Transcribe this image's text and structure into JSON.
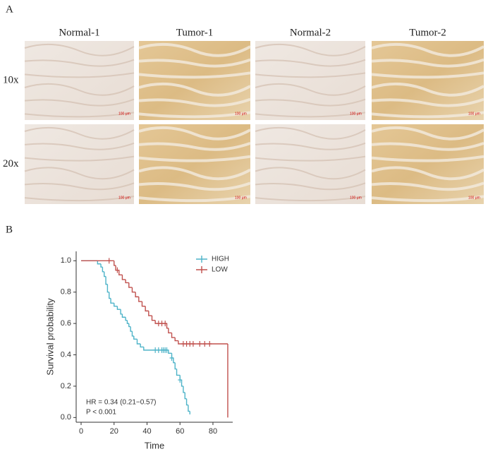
{
  "panel_a": {
    "label": "A",
    "columns": [
      "Normal-1",
      "Tumor-1",
      "Normal-2",
      "Tumor-2"
    ],
    "rows": [
      "10x",
      "20x"
    ],
    "scale_bar": "100 μm"
  },
  "panel_b": {
    "label": "B"
  },
  "chart_data": {
    "type": "km",
    "x_label": "Time",
    "y_label": "Survival probability",
    "annotations": [
      "HR = 0.34 (0.21−0.57)",
      "P < 0.001"
    ],
    "xlim": [
      -3,
      92
    ],
    "ylim": [
      -0.03,
      1.06
    ],
    "xticks": [
      0,
      20,
      40,
      60,
      80
    ],
    "yticks": [
      {
        "value": 0,
        "label": "0.0"
      },
      0.2,
      0.4,
      0.6,
      0.8,
      {
        "value": 1,
        "label": "1.0"
      }
    ],
    "legend": "top-right",
    "series": [
      {
        "name": "HIGH",
        "color": "#4db3c8",
        "x": [
          0,
          10,
          12,
          13,
          14,
          15,
          16,
          17,
          18,
          20,
          22,
          24,
          25,
          27,
          28,
          29,
          30,
          31,
          32,
          34,
          36,
          38,
          53,
          55,
          56,
          57,
          58,
          60,
          61,
          62,
          63,
          64,
          65,
          66
        ],
        "values": [
          1.0,
          0.98,
          0.96,
          0.93,
          0.9,
          0.85,
          0.8,
          0.76,
          0.73,
          0.71,
          0.69,
          0.66,
          0.64,
          0.62,
          0.6,
          0.58,
          0.55,
          0.52,
          0.5,
          0.47,
          0.45,
          0.43,
          0.41,
          0.38,
          0.35,
          0.31,
          0.27,
          0.24,
          0.2,
          0.16,
          0.12,
          0.08,
          0.04,
          0.02
        ],
        "censored_x": [
          45,
          47,
          49,
          50,
          51,
          52,
          55,
          60
        ],
        "censored_values": [
          0.43,
          0.43,
          0.43,
          0.43,
          0.43,
          0.43,
          0.38,
          0.24
        ]
      },
      {
        "name": "LOW",
        "color": "#c0504d",
        "x": [
          0,
          20,
          21,
          23,
          25,
          27,
          29,
          31,
          33,
          35,
          37,
          39,
          41,
          43,
          45,
          52,
          53,
          55,
          57,
          59,
          89
        ],
        "values": [
          1.0,
          0.97,
          0.94,
          0.91,
          0.88,
          0.86,
          0.83,
          0.8,
          0.77,
          0.74,
          0.71,
          0.68,
          0.65,
          0.62,
          0.6,
          0.57,
          0.54,
          0.51,
          0.49,
          0.47,
          0.0
        ],
        "censored_x": [
          17,
          22,
          47,
          49,
          51,
          62,
          64,
          66,
          68,
          72,
          75,
          78
        ],
        "censored_values": [
          1.0,
          0.94,
          0.6,
          0.6,
          0.6,
          0.47,
          0.47,
          0.47,
          0.47,
          0.47,
          0.47,
          0.47
        ]
      }
    ]
  }
}
